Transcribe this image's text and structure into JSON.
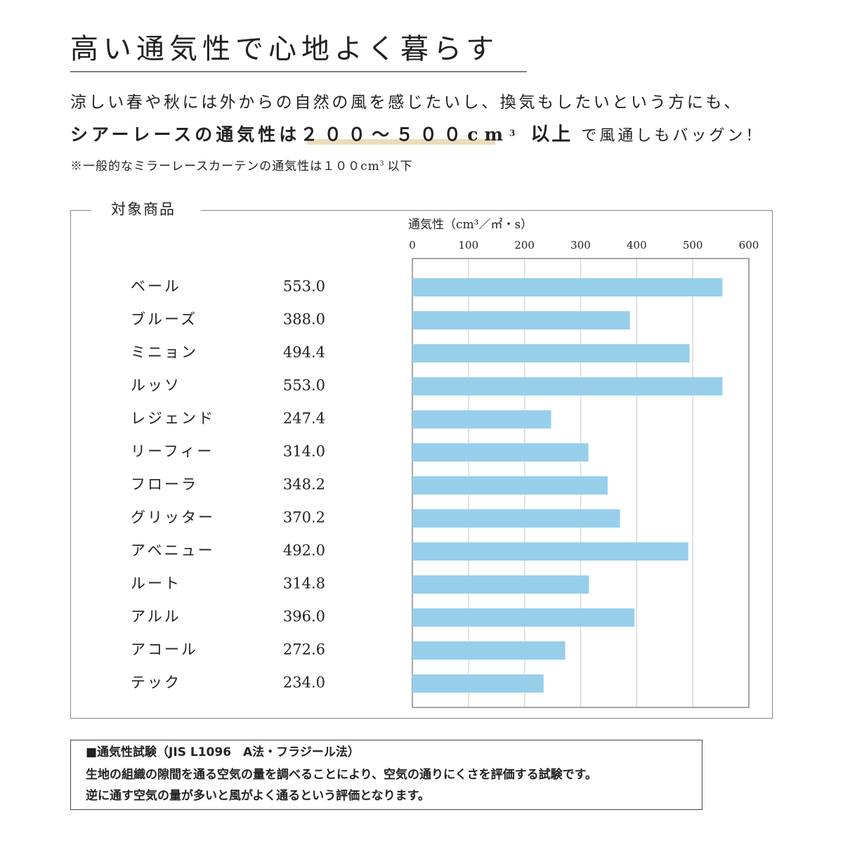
{
  "header": {
    "title": "高い通気性で心地よく暮らす",
    "line1": "涼しい春や秋には外からの自然の風を感じたいし、換気もしたいという方にも、",
    "line2": [
      "シアーレースの通気性は",
      "２００～５００cm",
      "3",
      "以上",
      "で風通しもバッグン！"
    ],
    "line3": [
      "※一般的なミラーレースカーテンの通気性は１００cm",
      "3",
      "以下"
    ]
  },
  "box_label": "対象商品",
  "chart_data": {
    "type": "bar",
    "orientation": "horizontal",
    "x_label": "通気性（cm³／㎡・s）",
    "categories": [
      "ベール",
      "ブルーズ",
      "ミニョン",
      "ルッソ",
      "レジェンド",
      "リーフィー",
      "フローラ",
      "グリッター",
      "アベニュー",
      "ルート",
      "アルル",
      "アコール",
      "テック"
    ],
    "values": [
      553,
      388,
      494.4,
      553,
      247.4,
      314,
      348.2,
      370.2,
      492,
      314.8,
      396,
      272.6,
      234
    ],
    "value_labels": [
      "553.0",
      "388.0",
      "494.4",
      "553.0",
      "247.4",
      "314.0",
      "348.2",
      "370.2",
      "492.0",
      "314.8",
      "396.0",
      "272.6",
      "234.0"
    ],
    "color": "#97cfeb",
    "xlim": [
      0,
      600
    ],
    "xticks": [
      0,
      100,
      200,
      300,
      400,
      500,
      600
    ],
    "grid": true
  },
  "test_note": {
    "heading": "■通気性試験（JIS L1096　A法・フラジール法）",
    "lines": [
      "生地の組織の隙間を通る空気の量を調べることにより、空気の通りにくさを評価する試験です。",
      "逆に通す空気の量が多いと風がよく通るという評価となります。"
    ]
  }
}
